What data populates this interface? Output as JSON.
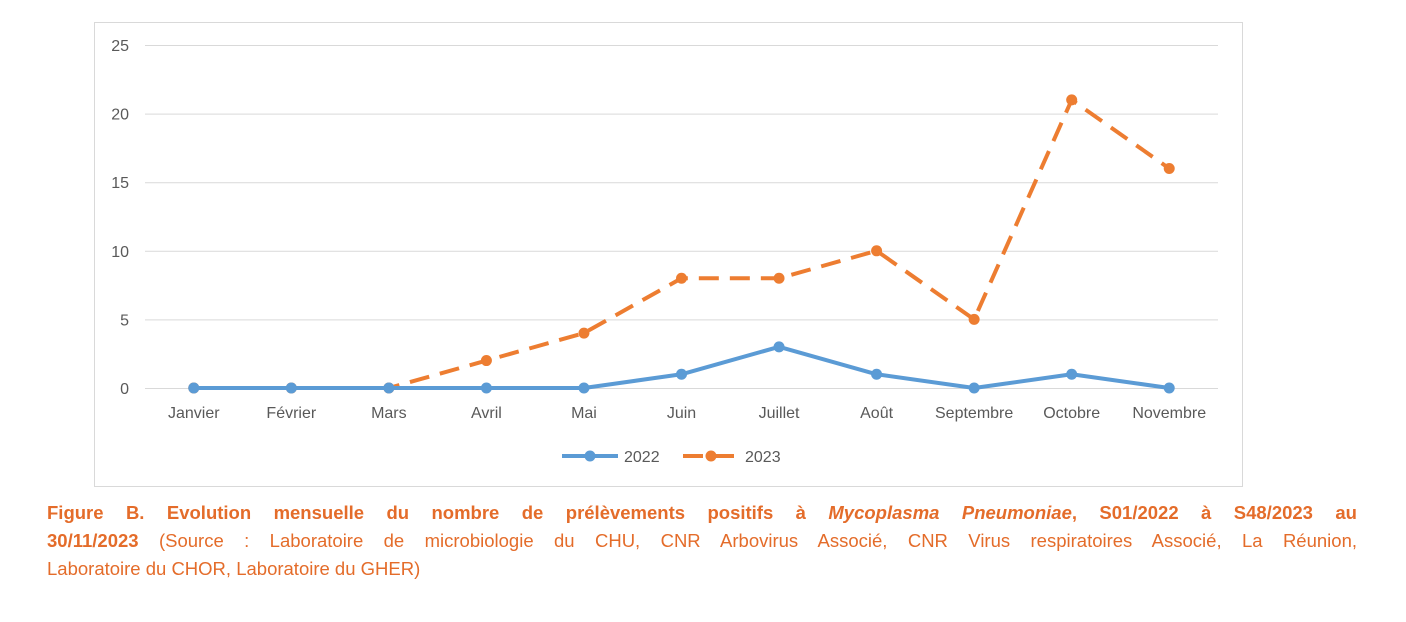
{
  "chart_data": {
    "type": "line",
    "categories": [
      "Janvier",
      "Février",
      "Mars",
      "Avril",
      "Mai",
      "Juin",
      "Juillet",
      "Août",
      "Septembre",
      "Octobre",
      "Novembre"
    ],
    "series": [
      {
        "name": "2022",
        "values": [
          0,
          0,
          0,
          0,
          0,
          1,
          3,
          1,
          0,
          1,
          0
        ],
        "color": "#5B9BD5",
        "style": "solid"
      },
      {
        "name": "2023",
        "values": [
          0,
          0,
          0,
          2,
          4,
          8,
          8,
          10,
          5,
          21,
          16
        ],
        "color": "#ED7D31",
        "style": "dashed"
      }
    ],
    "ylim": [
      0,
      25
    ],
    "yticks": [
      "0",
      "5",
      "10",
      "15",
      "20",
      "25"
    ],
    "grid": true,
    "legend": "bottom",
    "title": "",
    "xlabel": "",
    "ylabel": ""
  },
  "caption": {
    "line1_a": "Figure B. Evolution mensuelle du nombre de prélèvements positifs à ",
    "line1_italic": "Mycoplasma Pneumoniae",
    "line1_b": ", S01/2022 à S48/2023 au",
    "line2_bold": "30/11/2023",
    "line2_rest": " (Source : Laboratoire de microbiologie du CHU, CNR Arbovirus Associé, CNR Virus respiratoires Associé, La Réunion,",
    "line3": "Laboratoire du CHOR, Laboratoire du GHER)"
  }
}
